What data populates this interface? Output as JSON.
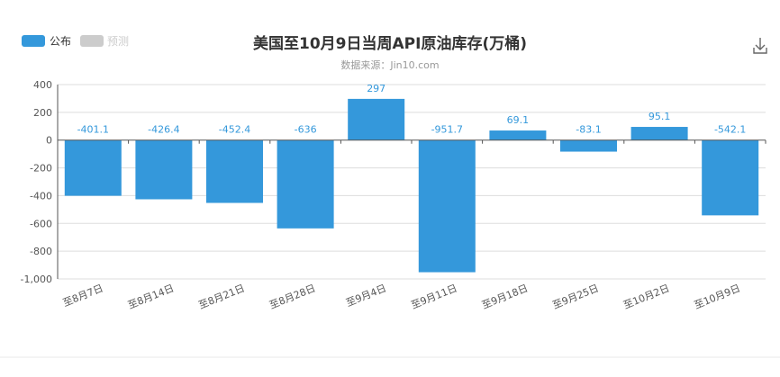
{
  "chart_data": {
    "type": "bar",
    "title": "美国至10月9日当周API原油库存(万桶)",
    "subtitle": "数据来源：Jin10.com",
    "legend": [
      {
        "name": "公布",
        "color": "#3498db",
        "active": true
      },
      {
        "name": "预测",
        "color": "#cccccc",
        "active": false
      }
    ],
    "legend_position": "top-left",
    "categories": [
      "至8月7日",
      "至8月14日",
      "至8月21日",
      "至8月28日",
      "至9月4日",
      "至9月11日",
      "至9月18日",
      "至9月25日",
      "至10月2日",
      "至10月9日"
    ],
    "series": [
      {
        "name": "公布",
        "color": "#3498db",
        "values": [
          -401.1,
          -426.4,
          -452.4,
          -636,
          297,
          -951.7,
          69.1,
          -83.1,
          95.1,
          -542.1
        ]
      }
    ],
    "value_labels": [
      "-401.1",
      "-426.4",
      "-452.4",
      "-636",
      "297",
      "-951.7",
      "69.1",
      "-83.1",
      "95.1",
      "-542.1"
    ],
    "ylim": [
      -1000,
      400
    ],
    "yticks": [
      400,
      200,
      0,
      -200,
      -400,
      -600,
      -800,
      -1000
    ],
    "ytick_labels": [
      "400",
      "200",
      "0",
      "-200",
      "-400",
      "-600",
      "-800",
      "-1,000"
    ],
    "grid": true,
    "xlabel": "",
    "ylabel": ""
  },
  "toolbar": {
    "download_icon": "download-icon"
  }
}
